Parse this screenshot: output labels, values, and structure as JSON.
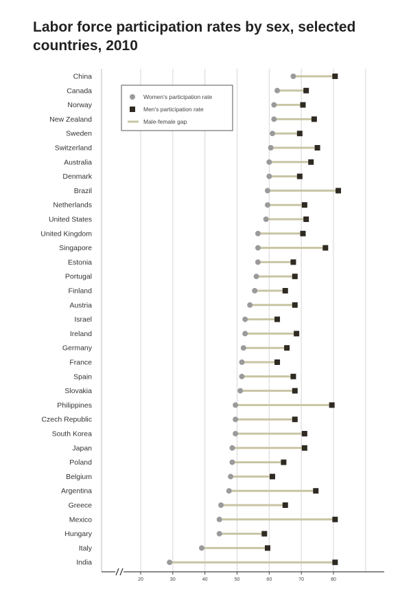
{
  "chart_data": {
    "type": "dot-gap",
    "title": "Labor force participation rates by sex, selected countries, 2010",
    "xlim": [
      20,
      90
    ],
    "xticks": [
      20,
      30,
      40,
      50,
      60,
      70,
      80
    ],
    "axis_break": true,
    "grid": true,
    "legend": {
      "position": "top-left",
      "entries": [
        {
          "name": "Women's participation rate",
          "marker": "circle",
          "color": "#9a9a9a"
        },
        {
          "name": "Men's participation rate",
          "marker": "square",
          "color": "#2f2a22"
        },
        {
          "name": "Male-female gap",
          "marker": "line",
          "color": "#c8c4a4"
        }
      ]
    },
    "categories": [
      "China",
      "Canada",
      "Norway",
      "New Zealand",
      "Sweden",
      "Switzerland",
      "Australia",
      "Denmark",
      "Brazil",
      "Netherlands",
      "United States",
      "United Kingdom",
      "Singapore",
      "Estonia",
      "Portugal",
      "Finland",
      "Austria",
      "Israel",
      "Ireland",
      "Germany",
      "France",
      "Spain",
      "Slovakia",
      "Philippines",
      "Czech Republic",
      "South Korea",
      "Japan",
      "Poland",
      "Belgium",
      "Argentina",
      "Greece",
      "Mexico",
      "Hungary",
      "Italy",
      "India"
    ],
    "series": [
      {
        "name": "Women's participation rate",
        "values": [
          67.5,
          62.5,
          61.5,
          61.5,
          61,
          60.5,
          60,
          60,
          59.5,
          59.5,
          59,
          56.5,
          56.5,
          56.5,
          56,
          55.5,
          54,
          52.5,
          52.5,
          52,
          51.5,
          51.5,
          51,
          49.5,
          49.5,
          49.5,
          48.5,
          48.5,
          48,
          47.5,
          45,
          44.5,
          44.5,
          39,
          29
        ]
      },
      {
        "name": "Men's participation rate",
        "values": [
          80.5,
          71.5,
          70.5,
          74,
          69.5,
          75,
          73,
          69.5,
          81.5,
          71,
          71.5,
          70.5,
          77.5,
          67.5,
          68,
          65,
          68,
          62.5,
          68.5,
          65.5,
          62.5,
          67.5,
          68,
          79.5,
          68,
          71,
          71,
          64.5,
          61,
          74.5,
          65,
          80.5,
          58.5,
          59.5,
          80.5
        ]
      }
    ]
  },
  "colors": {
    "women": "#9a9a9a",
    "men": "#2f2a22",
    "gap": "#c8c4a4",
    "grid": "#d6d6d6",
    "axis": "#444444"
  }
}
